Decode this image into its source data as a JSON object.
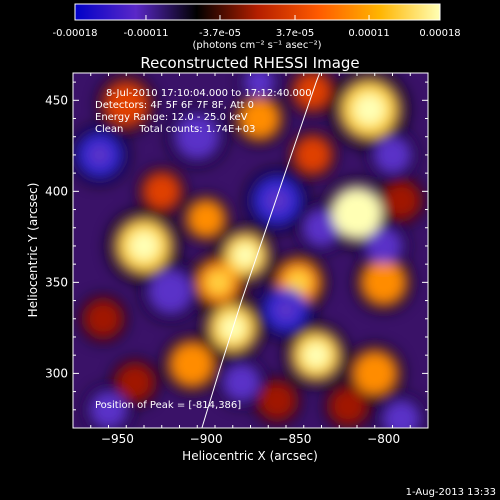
{
  "chart_data": {
    "type": "heatmap",
    "title": "Reconstructed RHESSI Image",
    "xlabel": "Heliocentric X (arcsec)",
    "ylabel": "Heliocentric Y (arcsec)",
    "xlim": [
      -975,
      -775
    ],
    "ylim": [
      270,
      465
    ],
    "xticks": [
      -950,
      -900,
      -850,
      -800
    ],
    "yticks": [
      300,
      350,
      400,
      450
    ],
    "colorbar": {
      "ticks": [
        -0.00018,
        -0.00011,
        -3.7e-05,
        3.7e-05,
        0.00011,
        0.00018
      ],
      "tick_labels": [
        "-0.00018",
        "-0.00011",
        "-3.7e-05",
        "3.7e-05",
        "0.00011",
        "0.00018"
      ],
      "unit": "(photons cm⁻² s⁻¹ asec⁻²)",
      "range": [
        -0.00018,
        0.00018
      ],
      "colors": [
        "#0000c8",
        "#5a28c8",
        "#000000",
        "#b41e00",
        "#ff5a00",
        "#ffb400",
        "#ffffb4"
      ]
    },
    "annotations": [
      "8-Jul-2010 17:10:04.000 to 17:12:40.000",
      "Detectors: 4F 5F 6F 7F 8F, Att 0",
      "Energy Range: 12.0 - 25.0 keV",
      "Clean     Total counts: 1.74E+03"
    ],
    "peak_label": "Position of Peak = [-814,386]",
    "peak": [
      -814,
      386
    ],
    "blobs": [
      {
        "x": -815,
        "y": 388,
        "v": 1.0,
        "r": 14
      },
      {
        "x": -808,
        "y": 445,
        "v": 0.85,
        "r": 16
      },
      {
        "x": -840,
        "y": 455,
        "v": 0.5,
        "r": 10
      },
      {
        "x": -935,
        "y": 370,
        "v": 0.85,
        "r": 15
      },
      {
        "x": -945,
        "y": 448,
        "v": 0.55,
        "r": 12
      },
      {
        "x": -925,
        "y": 400,
        "v": 0.5,
        "r": 10
      },
      {
        "x": -900,
        "y": 385,
        "v": 0.6,
        "r": 10
      },
      {
        "x": -870,
        "y": 440,
        "v": 0.6,
        "r": 11
      },
      {
        "x": -878,
        "y": 365,
        "v": 0.8,
        "r": 12
      },
      {
        "x": -893,
        "y": 350,
        "v": 0.7,
        "r": 12
      },
      {
        "x": -885,
        "y": 325,
        "v": 0.85,
        "r": 13
      },
      {
        "x": -908,
        "y": 305,
        "v": 0.6,
        "r": 12
      },
      {
        "x": -848,
        "y": 350,
        "v": 0.7,
        "r": 12
      },
      {
        "x": -840,
        "y": 420,
        "v": 0.55,
        "r": 10
      },
      {
        "x": -800,
        "y": 350,
        "v": 0.6,
        "r": 12
      },
      {
        "x": -790,
        "y": 395,
        "v": 0.4,
        "r": 10
      },
      {
        "x": -838,
        "y": 310,
        "v": 0.75,
        "r": 13
      },
      {
        "x": -805,
        "y": 300,
        "v": 0.6,
        "r": 12
      },
      {
        "x": -820,
        "y": 282,
        "v": 0.4,
        "r": 10
      },
      {
        "x": -860,
        "y": 285,
        "v": 0.4,
        "r": 10
      },
      {
        "x": -958,
        "y": 330,
        "v": 0.4,
        "r": 10
      },
      {
        "x": -940,
        "y": 295,
        "v": 0.4,
        "r": 10
      },
      {
        "x": -960,
        "y": 420,
        "v": -0.8,
        "r": 12
      },
      {
        "x": -905,
        "y": 430,
        "v": -0.6,
        "r": 12
      },
      {
        "x": -920,
        "y": 345,
        "v": -0.6,
        "r": 12
      },
      {
        "x": -860,
        "y": 395,
        "v": -0.7,
        "r": 13
      },
      {
        "x": -835,
        "y": 380,
        "v": -0.5,
        "r": 10
      },
      {
        "x": -855,
        "y": 335,
        "v": -0.7,
        "r": 12
      },
      {
        "x": -800,
        "y": 370,
        "v": -0.6,
        "r": 10
      },
      {
        "x": -795,
        "y": 420,
        "v": -0.5,
        "r": 10
      },
      {
        "x": -880,
        "y": 295,
        "v": -0.5,
        "r": 10
      },
      {
        "x": -955,
        "y": 280,
        "v": -0.6,
        "r": 10
      },
      {
        "x": -790,
        "y": 275,
        "v": -0.5,
        "r": 10
      },
      {
        "x": -870,
        "y": 460,
        "v": -0.4,
        "r": 8
      }
    ],
    "curve": [
      [
        -903,
        268
      ],
      [
        -893,
        300
      ],
      [
        -880,
        340
      ],
      [
        -866,
        380
      ],
      [
        -852,
        420
      ],
      [
        -838,
        460
      ],
      [
        -836,
        465
      ]
    ]
  },
  "timestamp": "1-Aug-2013 13:33"
}
